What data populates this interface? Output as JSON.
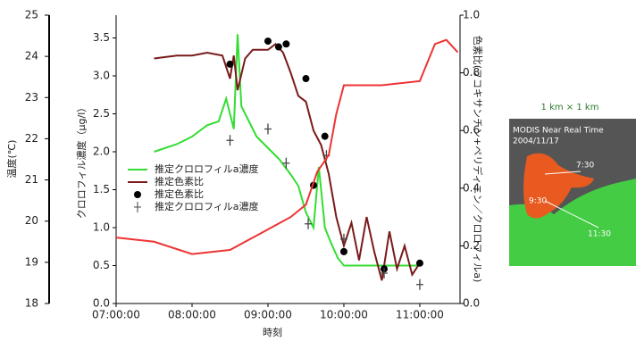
{
  "chart_data": {
    "type": "line",
    "x_label": "時刻",
    "y_label": "クロロフィル濃度（μg/l）",
    "y2_label": "色素比(フコキサンチン+ペリディニン／クロロフィルa)",
    "y3_label": "温度(℃)",
    "xlim": [
      7,
      11.53
    ],
    "xticks": [
      {
        "value": 7,
        "label": "07:00:00"
      },
      {
        "value": 8,
        "label": "08:00:00"
      },
      {
        "value": 9,
        "label": "09:00:00"
      },
      {
        "value": 10,
        "label": "10:00:00"
      },
      {
        "value": 11,
        "label": "11:00:00"
      }
    ],
    "ylim": [
      0,
      3.8
    ],
    "yticks": [
      {
        "value": 0,
        "label": "0.0"
      },
      0.5,
      {
        "value": 1,
        "label": "1.0"
      },
      1.5,
      {
        "value": 2,
        "label": "2.0"
      },
      2.5,
      {
        "value": 3,
        "label": "3.0"
      },
      3.5
    ],
    "y2lim": [
      0,
      1
    ],
    "y2ticks": [
      {
        "value": 0,
        "label": "0.0"
      },
      0.2,
      0.4,
      0.6,
      0.8,
      {
        "value": 1,
        "label": "1.0"
      }
    ],
    "y3lim": [
      18,
      25
    ],
    "y3ticks": [
      18,
      19,
      20,
      21,
      22,
      23,
      24,
      25
    ],
    "series": [
      {
        "name": "推定クロロフィルa濃度",
        "color": "#33dd33",
        "kind": "line",
        "axis": "y",
        "x": [
          7.5,
          7.8,
          8.0,
          8.2,
          8.35,
          8.45,
          8.55,
          8.6,
          8.65,
          8.75,
          8.85,
          9.0,
          9.15,
          9.3,
          9.4,
          9.5,
          9.6,
          9.67,
          9.75,
          9.83,
          9.92,
          10.0,
          10.2,
          10.5,
          10.8,
          11.0
        ],
        "values": [
          2.0,
          2.1,
          2.2,
          2.35,
          2.4,
          2.7,
          2.3,
          3.55,
          2.6,
          2.4,
          2.2,
          2.05,
          1.9,
          1.7,
          1.55,
          1.2,
          1.0,
          1.8,
          1.0,
          0.8,
          0.6,
          0.5,
          0.5,
          0.5,
          0.5,
          0.5
        ]
      },
      {
        "name": "推定色素比",
        "color": "#7a1a1a",
        "kind": "line",
        "axis": "y2",
        "x": [
          7.5,
          7.8,
          8.0,
          8.2,
          8.4,
          8.5,
          8.55,
          8.6,
          8.7,
          8.8,
          9.0,
          9.1,
          9.2,
          9.3,
          9.4,
          9.5,
          9.6,
          9.7,
          9.8,
          9.9,
          10.0,
          10.1,
          10.2,
          10.3,
          10.4,
          10.5,
          10.6,
          10.7,
          10.8,
          10.9,
          11.0
        ],
        "values": [
          0.85,
          0.86,
          0.86,
          0.87,
          0.86,
          0.78,
          0.86,
          0.74,
          0.85,
          0.88,
          0.88,
          0.9,
          0.87,
          0.8,
          0.72,
          0.7,
          0.6,
          0.55,
          0.45,
          0.3,
          0.2,
          0.28,
          0.15,
          0.3,
          0.18,
          0.08,
          0.25,
          0.12,
          0.2,
          0.1,
          0.14
        ]
      },
      {
        "name": "推定色素比",
        "color": "#000000",
        "kind": "dot",
        "axis": "y2",
        "x": [
          8.5,
          9.0,
          9.14,
          9.24,
          9.5,
          9.75,
          9.6,
          10.0,
          10.53,
          11.0
        ],
        "values": [
          0.83,
          0.91,
          0.89,
          0.9,
          0.78,
          0.58,
          0.41,
          0.18,
          0.12,
          0.14
        ]
      },
      {
        "name": "推定クロロフィルa濃度",
        "color": "#444444",
        "kind": "plus",
        "axis": "y",
        "x": [
          8.5,
          9.0,
          9.24,
          9.53,
          9.77,
          10.0,
          10.53,
          11.0
        ],
        "values": [
          2.15,
          2.3,
          1.85,
          1.05,
          1.95,
          0.85,
          0.4,
          0.25
        ]
      },
      {
        "color": "#ee3333",
        "kind": "line",
        "axis": "y3",
        "x": [
          7.0,
          7.5,
          8.0,
          8.5,
          9.0,
          9.3,
          9.5,
          9.65,
          9.8,
          9.9,
          10.0,
          10.5,
          11.0,
          11.2,
          11.35,
          11.5
        ],
        "values": [
          19.6,
          19.5,
          19.2,
          19.3,
          19.8,
          20.1,
          20.4,
          21.2,
          21.6,
          22.6,
          23.3,
          23.3,
          23.4,
          24.3,
          24.4,
          24.1
        ]
      }
    ]
  },
  "inset": {
    "scale": "1 km × 1 km",
    "caption": "MODIS  Near Real Time",
    "date": "2004/11/17",
    "labels": [
      "7:30",
      "9:30",
      "11:30"
    ]
  }
}
